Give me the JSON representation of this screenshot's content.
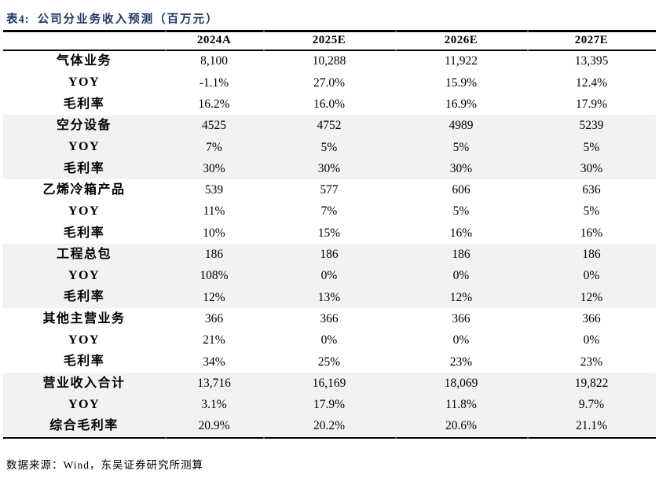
{
  "title": {
    "label": "表4:",
    "caption": "公司分业务收入预测（百万元）"
  },
  "table": {
    "columns": [
      "",
      "2024A",
      "2025E",
      "2026E",
      "2027E"
    ],
    "sections": [
      {
        "shaded": false,
        "rows": [
          [
            "气体业务",
            "8,100",
            "10,288",
            "11,922",
            "13,395"
          ],
          [
            "YOY",
            "-1.1%",
            "27.0%",
            "15.9%",
            "12.4%"
          ],
          [
            "毛利率",
            "16.2%",
            "16.0%",
            "16.9%",
            "17.9%"
          ]
        ]
      },
      {
        "shaded": true,
        "rows": [
          [
            "空分设备",
            "4525",
            "4752",
            "4989",
            "5239"
          ],
          [
            "YOY",
            "7%",
            "5%",
            "5%",
            "5%"
          ],
          [
            "毛利率",
            "30%",
            "30%",
            "30%",
            "30%"
          ]
        ]
      },
      {
        "shaded": false,
        "rows": [
          [
            "乙烯冷箱产品",
            "539",
            "577",
            "606",
            "636"
          ],
          [
            "YOY",
            "11%",
            "7%",
            "5%",
            "5%"
          ],
          [
            "毛利率",
            "10%",
            "15%",
            "16%",
            "16%"
          ]
        ]
      },
      {
        "shaded": true,
        "rows": [
          [
            "工程总包",
            "186",
            "186",
            "186",
            "186"
          ],
          [
            "YOY",
            "108%",
            "0%",
            "0%",
            "0%"
          ],
          [
            "毛利率",
            "12%",
            "13%",
            "12%",
            "12%"
          ]
        ]
      },
      {
        "shaded": false,
        "rows": [
          [
            "其他主营业务",
            "366",
            "366",
            "366",
            "366"
          ],
          [
            "YOY",
            "21%",
            "0%",
            "0%",
            "0%"
          ],
          [
            "毛利率",
            "34%",
            "25%",
            "23%",
            "23%"
          ]
        ]
      },
      {
        "shaded": true,
        "rows": [
          [
            "营业收入合计",
            "13,716",
            "16,169",
            "18,069",
            "19,822"
          ],
          [
            "YOY",
            "3.1%",
            "17.9%",
            "11.8%",
            "9.7%"
          ],
          [
            "综合毛利率",
            "20.9%",
            "20.2%",
            "20.6%",
            "21.1%"
          ]
        ]
      }
    ]
  },
  "footer": {
    "text": "数据来源：Wind，东吴证券研究所测算"
  },
  "colors": {
    "title_navy": "#1f3864",
    "band_gray": "#f2f2f2",
    "rule_black": "#000000"
  }
}
